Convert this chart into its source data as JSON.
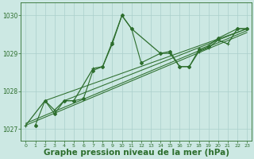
{
  "bg_color": "#cce8e3",
  "grid_color": "#aacfcc",
  "line_color": "#2d6e2d",
  "xlabel": "Graphe pression niveau de la mer (hPa)",
  "xlabel_fontsize": 7.5,
  "ytick_vals": [
    1027,
    1028,
    1029,
    1030
  ],
  "xtick_vals": [
    0,
    1,
    2,
    3,
    4,
    5,
    6,
    7,
    8,
    9,
    10,
    11,
    12,
    13,
    14,
    15,
    16,
    17,
    18,
    19,
    20,
    21,
    22,
    23
  ],
  "xlim": [
    -0.5,
    23.5
  ],
  "ylim": [
    1026.7,
    1030.35
  ],
  "line1_x": [
    0,
    2,
    3,
    4,
    5,
    7,
    8,
    9,
    10,
    11,
    14,
    15,
    16,
    17,
    18,
    19,
    20,
    21,
    22,
    23
  ],
  "line1_y": [
    1027.1,
    1027.75,
    1027.5,
    1027.75,
    1027.75,
    1028.6,
    1028.65,
    1029.3,
    1030.0,
    1029.65,
    1029.0,
    1029.0,
    1028.65,
    1028.65,
    1029.05,
    1029.15,
    1029.35,
    1029.25,
    1029.65,
    1029.65
  ],
  "line2_x": [
    1,
    2,
    3,
    4,
    5,
    6,
    7,
    8,
    9,
    10,
    11,
    12,
    14,
    15,
    16,
    17,
    18,
    19,
    20,
    22,
    23
  ],
  "line2_y": [
    1027.1,
    1027.75,
    1027.4,
    1027.75,
    1027.75,
    1027.8,
    1028.55,
    1028.65,
    1029.25,
    1030.0,
    1029.65,
    1028.75,
    1029.0,
    1029.05,
    1028.65,
    1028.65,
    1029.1,
    1029.2,
    1029.4,
    1029.65,
    1029.65
  ],
  "trend_lines": [
    {
      "x": [
        0,
        23
      ],
      "y": [
        1027.1,
        1029.55
      ]
    },
    {
      "x": [
        0,
        23
      ],
      "y": [
        1027.15,
        1029.6
      ]
    },
    {
      "x": [
        2,
        23
      ],
      "y": [
        1027.75,
        1029.65
      ]
    },
    {
      "x": [
        4,
        23
      ],
      "y": [
        1027.75,
        1029.65
      ]
    }
  ],
  "fig_width": 3.2,
  "fig_height": 2.0,
  "dpi": 100
}
